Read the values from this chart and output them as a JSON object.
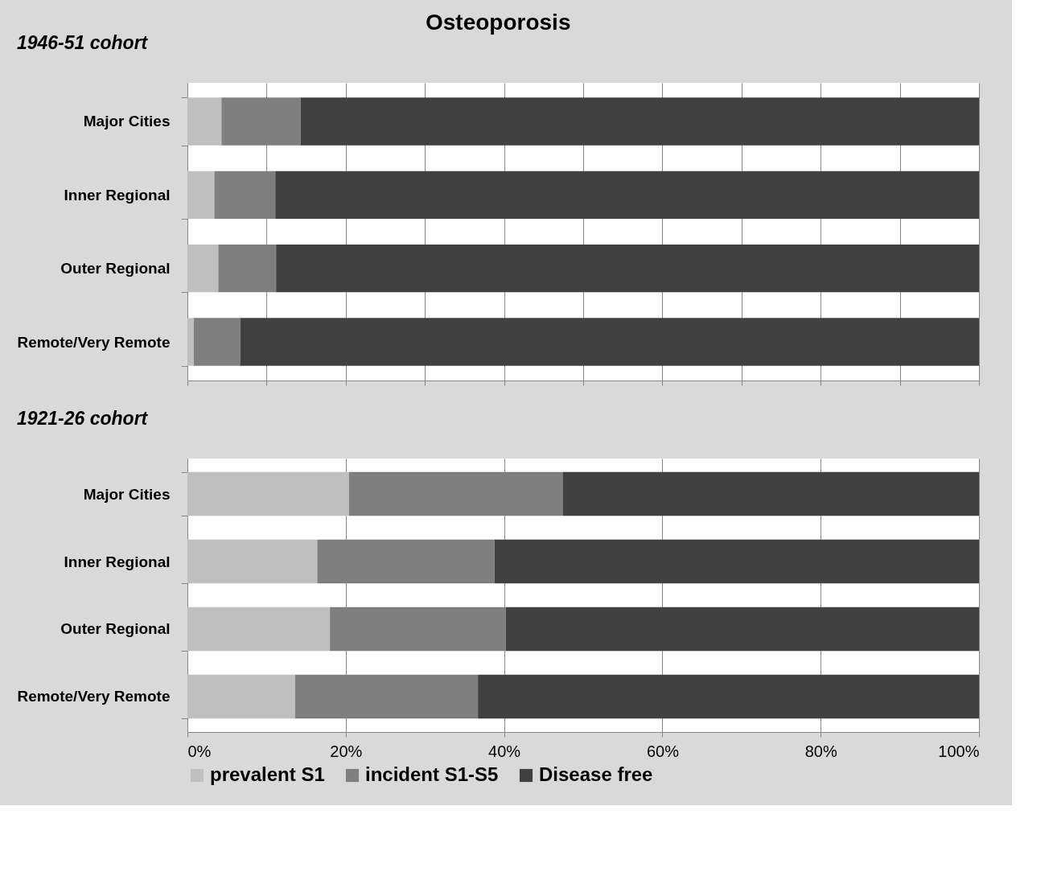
{
  "chart_data": [
    {
      "type": "bar",
      "orientation": "horizontal",
      "stacked": true,
      "title": "Osteoporosis",
      "subtitle": "1946-51 cohort",
      "categories": [
        "Major Cities",
        "Inner Regional",
        "Outer Regional",
        "Remote/Very Remote"
      ],
      "series": [
        {
          "color": "#bfbfbf",
          "values": [
            4.3,
            3.4,
            3.9,
            0.8
          ]
        },
        {
          "color": "#7f7f7f",
          "values": [
            10.0,
            7.7,
            7.3,
            5.9
          ]
        },
        {
          "color": "#404040",
          "values": [
            85.7,
            88.9,
            88.8,
            93.3
          ]
        }
      ],
      "xlim": [
        0,
        100
      ],
      "xticks": [
        {
          "value": 0,
          "label": null
        },
        {
          "value": 10,
          "label": null
        },
        {
          "value": 20,
          "label": null
        },
        {
          "value": 30,
          "label": null
        },
        {
          "value": 40,
          "label": null
        },
        {
          "value": 50,
          "label": null
        },
        {
          "value": 60,
          "label": null
        },
        {
          "value": 70,
          "label": null
        },
        {
          "value": 80,
          "label": null
        },
        {
          "value": 90,
          "label": null
        },
        {
          "value": 100,
          "label": null
        }
      ],
      "tick_labels": "y",
      "grid": "x",
      "legend": false
    },
    {
      "type": "bar",
      "orientation": "horizontal",
      "stacked": true,
      "title": "1921-26 cohort",
      "categories": [
        "Major Cities",
        "Inner Regional",
        "Outer Regional",
        "Remote/Very Remote"
      ],
      "series": [
        {
          "name": "prevalent S1",
          "color": "#bfbfbf",
          "values": [
            20.4,
            16.4,
            18.0,
            13.6
          ]
        },
        {
          "name": "incident S1-S5",
          "color": "#7f7f7f",
          "values": [
            27.0,
            22.4,
            22.2,
            23.1
          ]
        },
        {
          "name": "Disease free",
          "color": "#404040",
          "values": [
            52.6,
            61.2,
            59.8,
            63.3
          ]
        }
      ],
      "xlim": [
        0,
        100
      ],
      "xticks": [
        {
          "value": 0,
          "label": "0%"
        },
        {
          "value": 20,
          "label": "20%"
        },
        {
          "value": 40,
          "label": "40%"
        },
        {
          "value": 60,
          "label": "60%"
        },
        {
          "value": 80,
          "label": "80%"
        },
        {
          "value": 100,
          "label": "100%"
        }
      ],
      "grid": "x",
      "legend": "bottom"
    }
  ]
}
